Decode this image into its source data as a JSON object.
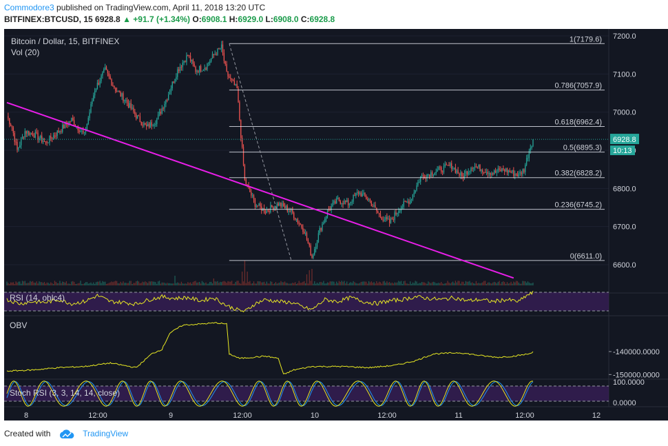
{
  "header": {
    "author": "Commodore3",
    "published": " published on TradingView.com, April 11, 2018 13:20 UTC",
    "symbol": "BITFINEX:BTCUSD, 15",
    "price": "6928.8",
    "change": "+91.7 (+1.34%)",
    "o_label": "O:",
    "o": "6908.1",
    "h_label": "H:",
    "h": "6929.0",
    "l_label": "L:",
    "l": "6908.0",
    "c_label": "C:",
    "c": "6928.8"
  },
  "footer": {
    "created": "Created with",
    "brand": "TradingView"
  },
  "colors": {
    "background": "#131722",
    "up": "#26a69a",
    "down": "#ef5350",
    "trendline": "#e91ee9",
    "indicator": "#e8e823",
    "fib": "#e0e3eb",
    "stoch_d": "#2196f3",
    "rsi_band": "#3a1f5a",
    "last_price": "#26a69a"
  },
  "chart_data": {
    "type": "candlestick",
    "title": "Bitcoin / Dollar, 15, BITFINEX",
    "volume_label": "Vol (20)",
    "y_ticks": [
      "7200.0",
      "7100.0",
      "7000.0",
      "6900.0",
      "6800.0",
      "6700.0",
      "6600.0"
    ],
    "ylim": [
      6560,
      7240
    ],
    "x_ticks": [
      "8",
      "12:00",
      "9",
      "12:00",
      "10",
      "12:00",
      "11",
      "12:00",
      "12"
    ],
    "last_price": "6928.8",
    "countdown": "10:13",
    "series": [
      {
        "name": "BTCUSD",
        "anchors": [
          [
            0,
            6990
          ],
          [
            4,
            6960
          ],
          [
            8,
            6900
          ],
          [
            14,
            6950
          ],
          [
            22,
            6940
          ],
          [
            30,
            6920
          ],
          [
            40,
            6950
          ],
          [
            50,
            6980
          ],
          [
            60,
            6940
          ],
          [
            68,
            7060
          ],
          [
            76,
            7110
          ],
          [
            84,
            7060
          ],
          [
            92,
            7030
          ],
          [
            100,
            6990
          ],
          [
            108,
            6960
          ],
          [
            116,
            6980
          ],
          [
            124,
            7040
          ],
          [
            132,
            7110
          ],
          [
            140,
            7150
          ],
          [
            146,
            7110
          ],
          [
            154,
            7120
          ],
          [
            160,
            7150
          ],
          [
            166,
            7170
          ],
          [
            170,
            7100
          ],
          [
            178,
            7060
          ],
          [
            184,
            6820
          ],
          [
            192,
            6760
          ],
          [
            200,
            6740
          ],
          [
            210,
            6760
          ],
          [
            220,
            6740
          ],
          [
            230,
            6690
          ],
          [
            236,
            6620
          ],
          [
            242,
            6690
          ],
          [
            248,
            6740
          ],
          [
            256,
            6770
          ],
          [
            264,
            6760
          ],
          [
            272,
            6790
          ],
          [
            280,
            6770
          ],
          [
            288,
            6730
          ],
          [
            296,
            6710
          ],
          [
            304,
            6750
          ],
          [
            312,
            6770
          ],
          [
            320,
            6830
          ],
          [
            328,
            6840
          ],
          [
            336,
            6850
          ],
          [
            344,
            6860
          ],
          [
            352,
            6830
          ],
          [
            360,
            6860
          ],
          [
            368,
            6850
          ],
          [
            376,
            6840
          ],
          [
            384,
            6850
          ],
          [
            392,
            6840
          ],
          [
            396,
            6835
          ],
          [
            400,
            6850
          ],
          [
            404,
            6900
          ],
          [
            407,
            6929
          ]
        ]
      }
    ],
    "volume_spikes": [
      [
        182,
        0.5
      ],
      [
        184,
        0.9
      ],
      [
        186,
        0.5
      ],
      [
        232,
        0.4
      ],
      [
        234,
        0.55
      ],
      [
        236,
        0.6
      ],
      [
        130,
        0.35
      ],
      [
        160,
        0.25
      ]
    ],
    "fib_levels": [
      {
        "ratio": "1",
        "price": 7179.6,
        "label": "1(7179.6)"
      },
      {
        "ratio": "0.786",
        "price": 7057.9,
        "label": "0.786(7057.9)"
      },
      {
        "ratio": "0.618",
        "price": 6962.4,
        "label": "0.618(6962.4)"
      },
      {
        "ratio": "0.5",
        "price": 6895.3,
        "label": "0.5(6895.3)"
      },
      {
        "ratio": "0.382",
        "price": 6828.2,
        "label": "0.382(6828.2)"
      },
      {
        "ratio": "0.236",
        "price": 6745.2,
        "label": "0.236(6745.2)"
      },
      {
        "ratio": "0",
        "price": 6611.0,
        "label": "0(6611.0)"
      }
    ],
    "trendline": {
      "from": [
        0,
        7025
      ],
      "to": [
        392,
        6565
      ]
    },
    "rsi": {
      "label": "RSI (14, ohlc4)",
      "upper": 70,
      "lower": 30,
      "anchors": [
        [
          0,
          55
        ],
        [
          10,
          45
        ],
        [
          20,
          50
        ],
        [
          30,
          48
        ],
        [
          40,
          55
        ],
        [
          50,
          45
        ],
        [
          60,
          50
        ],
        [
          70,
          65
        ],
        [
          80,
          50
        ],
        [
          90,
          48
        ],
        [
          100,
          44
        ],
        [
          110,
          55
        ],
        [
          120,
          62
        ],
        [
          130,
          58
        ],
        [
          140,
          60
        ],
        [
          150,
          52
        ],
        [
          160,
          60
        ],
        [
          170,
          40
        ],
        [
          178,
          30
        ],
        [
          184,
          25
        ],
        [
          192,
          45
        ],
        [
          200,
          55
        ],
        [
          210,
          50
        ],
        [
          220,
          48
        ],
        [
          230,
          35
        ],
        [
          236,
          30
        ],
        [
          246,
          55
        ],
        [
          256,
          50
        ],
        [
          266,
          60
        ],
        [
          276,
          50
        ],
        [
          286,
          45
        ],
        [
          296,
          52
        ],
        [
          306,
          55
        ],
        [
          316,
          62
        ],
        [
          326,
          58
        ],
        [
          336,
          55
        ],
        [
          346,
          60
        ],
        [
          356,
          52
        ],
        [
          366,
          55
        ],
        [
          376,
          50
        ],
        [
          386,
          55
        ],
        [
          396,
          50
        ],
        [
          402,
          65
        ],
        [
          407,
          72
        ]
      ]
    },
    "obv": {
      "label": "OBV",
      "ticks": [
        "-140000.0000",
        "-150000.0000"
      ],
      "ylim": [
        -152000,
        -125000
      ],
      "anchors": [
        [
          0,
          -148500
        ],
        [
          20,
          -148000
        ],
        [
          40,
          -147000
        ],
        [
          60,
          -146500
        ],
        [
          80,
          -145000
        ],
        [
          100,
          -147000
        ],
        [
          112,
          -141000
        ],
        [
          120,
          -139000
        ],
        [
          126,
          -132000
        ],
        [
          136,
          -128500
        ],
        [
          150,
          -128000
        ],
        [
          162,
          -127500
        ],
        [
          170,
          -128000
        ],
        [
          172,
          -141000
        ],
        [
          180,
          -143000
        ],
        [
          200,
          -142000
        ],
        [
          210,
          -143000
        ],
        [
          214,
          -150000
        ],
        [
          222,
          -148000
        ],
        [
          236,
          -146500
        ],
        [
          260,
          -146500
        ],
        [
          280,
          -147000
        ],
        [
          300,
          -146000
        ],
        [
          316,
          -144000
        ],
        [
          330,
          -141000
        ],
        [
          350,
          -140500
        ],
        [
          370,
          -142000
        ],
        [
          380,
          -142500
        ],
        [
          392,
          -142000
        ],
        [
          404,
          -141000
        ],
        [
          407,
          -140000
        ]
      ]
    },
    "stoch_rsi": {
      "label": "Stoch RSI (3, 3, 14, 14, close)",
      "ticks": [
        "100.0000",
        "0.0000"
      ],
      "upper": 80,
      "lower": 20
    }
  }
}
